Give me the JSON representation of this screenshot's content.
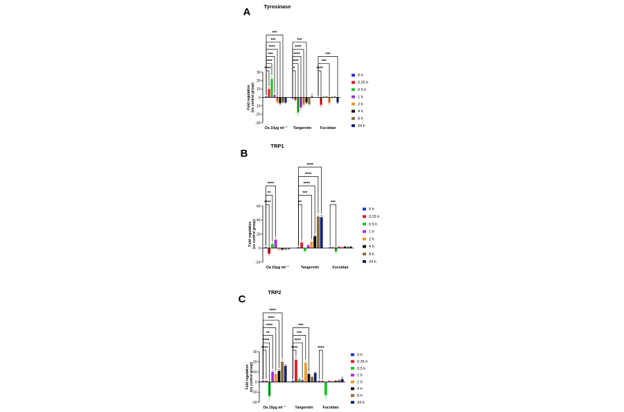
{
  "series_colors": [
    "#1f2fd6",
    "#e21b23",
    "#22c32a",
    "#a531d6",
    "#f3962b",
    "#111111",
    "#8a6a36",
    "#10206e"
  ],
  "chart_data": [
    {
      "type": "bar",
      "panel": "A",
      "title": "Tyrosinase",
      "ylabel": [
        "Fold regulation",
        "(vs control group)"
      ],
      "ylim": [
        -30,
        30
      ],
      "yticks": [
        -30,
        -20,
        -10,
        0,
        10,
        20,
        30
      ],
      "categories": [
        "Oa 10μg ml⁻¹",
        "Tangeretin",
        "Fucoidan"
      ],
      "legend": [
        "0 h",
        "0.25 h",
        "0.5 h",
        "1 h",
        "2 h",
        "4 h",
        "8 h",
        "24 h"
      ],
      "values": [
        [
          1,
          10,
          22,
          3,
          -6,
          -7,
          -6,
          -6
        ],
        [
          -1,
          -3,
          -18,
          -12,
          -9,
          -6,
          -8,
          1
        ],
        [
          0,
          -9,
          1,
          1,
          -7,
          0,
          1,
          -6
        ]
      ],
      "errors": [
        [
          0.5,
          2,
          3,
          1,
          1.5,
          1.5,
          1,
          1
        ],
        [
          0.5,
          1,
          3,
          2,
          2,
          1.5,
          1.5,
          3
        ],
        [
          0.5,
          2,
          0.5,
          0.5,
          1.5,
          0.5,
          0.5,
          1.5
        ]
      ],
      "brackets": [
        {
          "a": [
            0,
            0
          ],
          "b": [
            0,
            1
          ],
          "label": "****"
        },
        {
          "a": [
            0,
            0
          ],
          "b": [
            0,
            2
          ],
          "label": "****"
        },
        {
          "a": [
            0,
            0
          ],
          "b": [
            0,
            3
          ],
          "label": "***"
        },
        {
          "a": [
            0,
            0
          ],
          "b": [
            0,
            4
          ],
          "label": "****"
        },
        {
          "a": [
            0,
            0
          ],
          "b": [
            0,
            5
          ],
          "label": "***"
        },
        {
          "a": [
            0,
            0
          ],
          "b": [
            0,
            6
          ],
          "label": "***"
        },
        {
          "a": [
            1,
            0
          ],
          "b": [
            1,
            1
          ],
          "label": "*"
        },
        {
          "a": [
            1,
            0
          ],
          "b": [
            1,
            2
          ],
          "label": "****"
        },
        {
          "a": [
            1,
            0
          ],
          "b": [
            1,
            3
          ],
          "label": "****"
        },
        {
          "a": [
            1,
            0
          ],
          "b": [
            1,
            4
          ],
          "label": "****"
        },
        {
          "a": [
            1,
            0
          ],
          "b": [
            1,
            5
          ],
          "label": "***"
        },
        {
          "a": [
            2,
            0
          ],
          "b": [
            2,
            1
          ],
          "label": "****"
        },
        {
          "a": [
            2,
            0
          ],
          "b": [
            2,
            4
          ],
          "label": "***"
        },
        {
          "a": [
            2,
            0
          ],
          "b": [
            2,
            7
          ],
          "label": "***"
        }
      ]
    },
    {
      "type": "bar",
      "panel": "B",
      "title": "TRP1",
      "ylabel": [
        "Fold regulation",
        "(vs control group)"
      ],
      "ylim": [
        -20,
        60
      ],
      "yticks": [
        -20,
        0,
        20,
        40,
        60
      ],
      "categories": [
        "Oa 10μg ml⁻¹",
        "Tangeretin",
        "Fucoidan"
      ],
      "legend": [
        "0 h",
        "0.25 h",
        "0.5 h",
        "1 h",
        "2 h",
        "4 h",
        "8 h",
        "24 h"
      ],
      "values": [
        [
          1,
          -8,
          6,
          12,
          -2,
          -2,
          -2,
          -1
        ],
        [
          1,
          8,
          -4,
          4,
          9,
          17,
          45,
          44
        ],
        [
          1,
          1,
          -5,
          2,
          2,
          2,
          2,
          2
        ]
      ],
      "errors": [
        [
          0.5,
          2,
          1.5,
          2,
          1,
          0.5,
          0.5,
          0.5
        ],
        [
          0.5,
          2,
          2,
          1.5,
          2,
          2,
          3,
          3
        ],
        [
          0.5,
          0.5,
          2,
          0.5,
          0.5,
          0.5,
          0.5,
          0.5
        ]
      ],
      "brackets": [
        {
          "a": [
            0,
            0
          ],
          "b": [
            0,
            1
          ],
          "label": "****"
        },
        {
          "a": [
            0,
            0
          ],
          "b": [
            0,
            2
          ],
          "label": "**"
        },
        {
          "a": [
            0,
            0
          ],
          "b": [
            0,
            3
          ],
          "label": "****"
        },
        {
          "a": [
            1,
            0
          ],
          "b": [
            1,
            1
          ],
          "label": "**"
        },
        {
          "a": [
            1,
            0
          ],
          "b": [
            1,
            4
          ],
          "label": "***"
        },
        {
          "a": [
            1,
            0
          ],
          "b": [
            1,
            5
          ],
          "label": "****"
        },
        {
          "a": [
            1,
            0
          ],
          "b": [
            1,
            6
          ],
          "label": "****"
        },
        {
          "a": [
            1,
            0
          ],
          "b": [
            1,
            7
          ],
          "label": "****"
        },
        {
          "a": [
            2,
            0
          ],
          "b": [
            2,
            2
          ],
          "label": "***"
        }
      ]
    },
    {
      "type": "bar",
      "panel": "C",
      "title": "TRP2",
      "ylabel": [
        "Fold regulation",
        "(vs control group)"
      ],
      "ylim": [
        -20,
        30
      ],
      "yticks": [
        -20,
        -10,
        0,
        10,
        20,
        30
      ],
      "categories": [
        "Oa 10μg ml⁻¹",
        "Tangeretin",
        "Fucoidan"
      ],
      "legend": [
        "0 h",
        "0.25 h",
        "0.5 h",
        "1 h",
        "2 h",
        "4 h",
        "8 h",
        "24 h"
      ],
      "values": [
        [
          1,
          1,
          -14,
          10,
          8,
          11,
          20,
          16
        ],
        [
          1,
          22,
          3,
          2,
          19,
          8,
          5,
          9
        ],
        [
          1,
          1,
          -13,
          1,
          1,
          1,
          2,
          3
        ]
      ],
      "errors": [
        [
          0.5,
          0.5,
          3,
          1.5,
          1.5,
          1.5,
          2,
          1.5
        ],
        [
          0.5,
          2,
          1,
          0.5,
          2,
          1,
          1,
          1
        ],
        [
          0.5,
          0.5,
          3,
          0.5,
          0.5,
          0.5,
          0.5,
          2
        ]
      ],
      "brackets": [
        {
          "a": [
            0,
            0
          ],
          "b": [
            0,
            1
          ],
          "label": "****"
        },
        {
          "a": [
            0,
            0
          ],
          "b": [
            0,
            2
          ],
          "label": "****"
        },
        {
          "a": [
            0,
            0
          ],
          "b": [
            0,
            3
          ],
          "label": "**"
        },
        {
          "a": [
            0,
            0
          ],
          "b": [
            0,
            4
          ],
          "label": "****"
        },
        {
          "a": [
            0,
            0
          ],
          "b": [
            0,
            5
          ],
          "label": "****"
        },
        {
          "a": [
            0,
            0
          ],
          "b": [
            0,
            6
          ],
          "label": "****"
        },
        {
          "a": [
            1,
            0
          ],
          "b": [
            1,
            1
          ],
          "label": "****"
        },
        {
          "a": [
            1,
            0
          ],
          "b": [
            1,
            3
          ],
          "label": "****"
        },
        {
          "a": [
            1,
            0
          ],
          "b": [
            1,
            4
          ],
          "label": "***"
        },
        {
          "a": [
            1,
            0
          ],
          "b": [
            1,
            5
          ],
          "label": "***"
        },
        {
          "a": [
            2,
            0
          ],
          "b": [
            2,
            1
          ],
          "label": "****"
        }
      ]
    }
  ]
}
